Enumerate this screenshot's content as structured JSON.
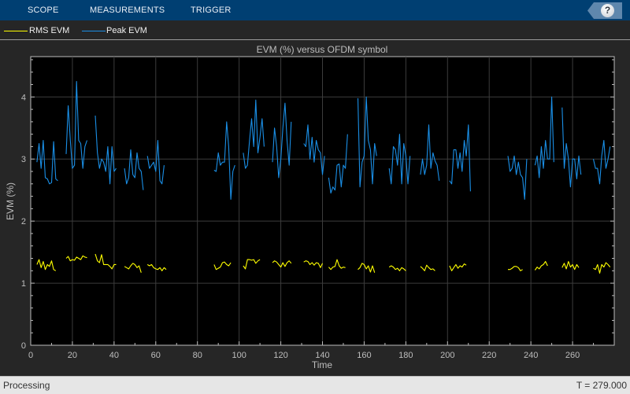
{
  "toolstrip": {
    "tabs": [
      "SCOPE",
      "MEASUREMENTS",
      "TRIGGER"
    ],
    "help_label": "?"
  },
  "legend": [
    {
      "label": "RMS EVM",
      "color": "#ffff00"
    },
    {
      "label": "Peak EVM",
      "color": "#1a8fe6"
    }
  ],
  "status": {
    "left": "Processing",
    "right": "T = 279.000"
  },
  "chart_data": {
    "type": "line",
    "title": "EVM (%) versus OFDM symbol",
    "xlabel": "Time",
    "ylabel": "EVM (%)",
    "xlim": [
      0,
      280
    ],
    "ylim": [
      0,
      4.65
    ],
    "xticks": [
      0,
      20,
      40,
      60,
      80,
      100,
      120,
      140,
      160,
      180,
      200,
      220,
      240,
      260
    ],
    "yticks": [
      0,
      1,
      2,
      3,
      4
    ],
    "grid": true,
    "series": [
      {
        "name": "RMS EVM",
        "color": "#ffff00",
        "segments": [
          {
            "start": 3,
            "values": [
              1.3,
              1.38,
              1.25,
              1.35,
              1.22,
              1.3,
              1.27,
              1.36,
              1.22,
              1.2
            ]
          },
          {
            "start": 17,
            "values": [
              1.4,
              1.43,
              1.36,
              1.38,
              1.37,
              1.42,
              1.4,
              1.38,
              1.44,
              1.42,
              1.41
            ]
          },
          {
            "start": 31,
            "values": [
              1.47,
              1.36,
              1.33,
              1.46,
              1.3,
              1.3,
              1.3,
              1.27,
              1.23,
              1.3,
              1.3
            ]
          },
          {
            "start": 45,
            "values": [
              1.27,
              1.25,
              1.23,
              1.28,
              1.32,
              1.3,
              1.25,
              1.28,
              1.17
            ]
          },
          {
            "start": 56,
            "values": [
              1.3,
              1.28,
              1.3,
              1.25,
              1.23,
              1.22,
              1.25,
              1.2,
              1.25,
              1.22
            ]
          },
          {
            "start": 88,
            "values": [
              1.3,
              1.22,
              1.24,
              1.26,
              1.33,
              1.34,
              1.3,
              1.28,
              1.33
            ]
          },
          {
            "start": 102,
            "values": [
              1.28,
              1.23,
              1.38,
              1.38,
              1.37,
              1.38,
              1.32,
              1.36,
              1.38
            ]
          },
          {
            "start": 116,
            "values": [
              1.33,
              1.36,
              1.34,
              1.3,
              1.26,
              1.33,
              1.27,
              1.33,
              1.36,
              1.32
            ]
          },
          {
            "start": 131,
            "values": [
              1.34,
              1.36,
              1.35,
              1.3,
              1.33,
              1.29,
              1.33,
              1.32,
              1.25,
              1.32
            ]
          },
          {
            "start": 143,
            "values": [
              1.26,
              1.22,
              1.26,
              1.27,
              1.38,
              1.28,
              1.24,
              1.26,
              1.25
            ]
          },
          {
            "start": 157,
            "values": [
              1.22,
              1.25,
              1.32,
              1.3,
              1.23,
              1.28,
              1.18,
              1.28,
              1.17
            ]
          },
          {
            "start": 172,
            "values": [
              1.26,
              1.28,
              1.26,
              1.22,
              1.24,
              1.2,
              1.25,
              1.23,
              1.2
            ]
          },
          {
            "start": 187,
            "values": [
              1.27,
              1.24,
              1.2,
              1.29,
              1.25,
              1.22,
              1.23,
              1.2
            ]
          },
          {
            "start": 201,
            "values": [
              1.28,
              1.2,
              1.25,
              1.3,
              1.24,
              1.28,
              1.26,
              1.31,
              1.29
            ]
          },
          {
            "start": 229,
            "values": [
              1.22,
              1.22,
              1.24,
              1.27,
              1.27,
              1.25,
              1.2,
              1.22
            ]
          },
          {
            "start": 242,
            "values": [
              1.21,
              1.26,
              1.23,
              1.28,
              1.3,
              1.35,
              1.28
            ]
          },
          {
            "start": 255,
            "values": [
              1.25,
              1.32,
              1.23,
              1.35,
              1.26,
              1.3,
              1.22,
              1.3,
              1.25
            ]
          },
          {
            "start": 270,
            "values": [
              1.24,
              1.22,
              1.3,
              1.16,
              1.3,
              1.26,
              1.33,
              1.3,
              1.26
            ]
          }
        ]
      },
      {
        "name": "Peak EVM",
        "color": "#1a8fe6",
        "segments": [
          {
            "start": 3,
            "values": [
              2.95,
              3.25,
              2.85,
              3.3,
              2.7,
              2.68,
              2.6,
              2.62,
              3.28,
              2.68,
              2.65
            ]
          },
          {
            "start": 17,
            "values": [
              3.08,
              3.86,
              3.3,
              2.85,
              2.9,
              4.25,
              3.3,
              3.25,
              2.85,
              3.2,
              3.3
            ]
          },
          {
            "start": 31,
            "values": [
              3.7,
              3.1,
              2.85,
              3.0,
              2.95,
              2.8,
              3.2,
              2.6,
              3.2,
              2.8,
              2.85
            ]
          },
          {
            "start": 45,
            "values": [
              2.85,
              2.6,
              2.7,
              3.15,
              2.75,
              2.7,
              3.1,
              2.85,
              2.8,
              2.5
            ]
          },
          {
            "start": 56,
            "values": [
              3.05,
              2.85,
              2.9,
              2.95,
              2.8,
              3.3,
              2.65,
              2.6,
              2.9
            ]
          },
          {
            "start": 88,
            "values": [
              2.82,
              2.8,
              3.1,
              2.9,
              2.95,
              2.95,
              3.6,
              3.2,
              2.35,
              2.8,
              2.9
            ]
          },
          {
            "start": 102,
            "values": [
              3.1,
              2.85,
              2.9,
              3.3,
              3.65,
              3.2,
              3.95,
              3.1,
              3.35,
              3.65,
              3.2
            ]
          },
          {
            "start": 116,
            "values": [
              2.95,
              3.5,
              3.2,
              2.7,
              3.0,
              3.5,
              3.9,
              3.3,
              2.9,
              3.6
            ]
          },
          {
            "start": 131,
            "values": [
              3.25,
              3.2,
              3.55,
              3.0,
              3.35,
              2.95,
              3.3,
              3.15,
              3.1,
              2.75,
              3.05
            ]
          },
          {
            "start": 143,
            "values": [
              2.7,
              2.45,
              2.55,
              2.5,
              2.9,
              2.92,
              2.55,
              2.9,
              2.85,
              3.4
            ]
          },
          {
            "start": 157,
            "values": [
              3.98,
              2.55,
              2.95,
              3.05,
              4.0,
              3.3,
              3.15,
              2.6,
              3.25,
              3.05
            ]
          },
          {
            "start": 172,
            "values": [
              2.85,
              2.6,
              3.2,
              3.15,
              2.9,
              3.4,
              2.6,
              3.25,
              3.05,
              2.6,
              3.05
            ]
          },
          {
            "start": 187,
            "values": [
              2.75,
              3.0,
              2.75,
              2.9,
              3.55,
              2.85,
              3.1,
              2.97,
              2.9,
              2.65
            ]
          },
          {
            "start": 201,
            "values": [
              2.65,
              2.6,
              3.15,
              3.15,
              2.85,
              3.1,
              2.8,
              3.3,
              3.05,
              3.55,
              2.48
            ]
          },
          {
            "start": 229,
            "values": [
              3.05,
              2.8,
              2.85,
              3.05,
              2.75,
              2.95,
              2.75,
              2.7,
              2.35,
              3.0
            ]
          },
          {
            "start": 242,
            "values": [
              2.9,
              3.05,
              2.7,
              3.2,
              2.85,
              3.3,
              3.0,
              3.0,
              4.0,
              2.95
            ]
          },
          {
            "start": 255,
            "values": [
              3.83,
              2.85,
              3.25,
              3.0,
              2.55,
              3.0,
              3.0,
              2.68,
              3.05,
              2.75
            ]
          },
          {
            "start": 270,
            "values": [
              3.0,
              2.85,
              2.85,
              2.6,
              3.05,
              3.3,
              2.85,
              3.0,
              3.2
            ]
          }
        ]
      }
    ]
  }
}
